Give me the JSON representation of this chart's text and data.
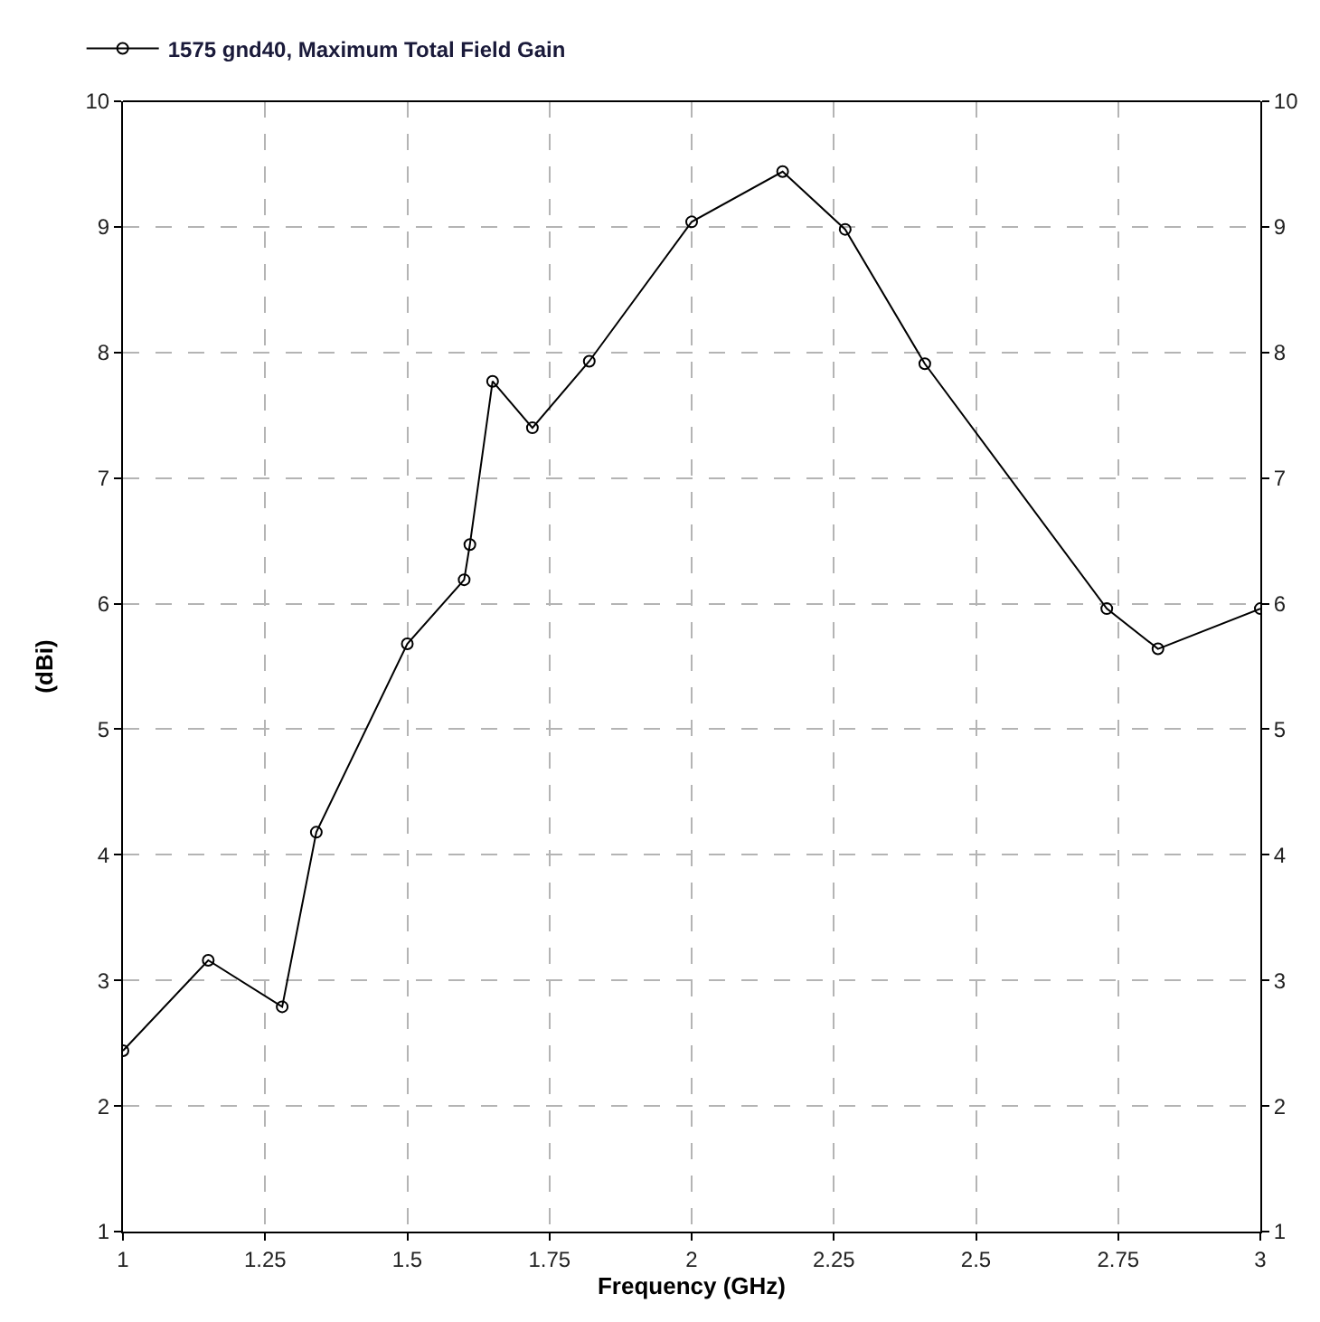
{
  "chart_data": {
    "type": "line",
    "xlabel": "Frequency (GHz)",
    "ylabel": "(dBi)",
    "x": [
      1.0,
      1.15,
      1.28,
      1.34,
      1.5,
      1.6,
      1.61,
      1.65,
      1.72,
      1.82,
      2.0,
      2.16,
      2.27,
      2.41,
      2.73,
      2.82,
      3.0
    ],
    "series": [
      {
        "name": "1575 gnd40, Maximum Total Field Gain",
        "color": "#000000",
        "values": [
          2.44,
          3.16,
          2.79,
          4.18,
          5.68,
          6.19,
          6.47,
          7.77,
          7.4,
          7.93,
          9.04,
          9.44,
          8.98,
          7.91,
          5.96,
          5.64,
          5.96
        ]
      }
    ],
    "xlim": [
      1,
      3
    ],
    "xticks": [
      1,
      1.25,
      1.5,
      1.75,
      2,
      2.25,
      2.5,
      2.75,
      3
    ],
    "ylim": [
      1,
      10
    ],
    "yticks": [
      1,
      2,
      3,
      4,
      5,
      6,
      7,
      8,
      9,
      10
    ],
    "y2lim": [
      1,
      10
    ],
    "y2ticks": [
      1,
      2,
      3,
      4,
      5,
      6,
      7,
      8,
      9,
      10
    ],
    "grid": true,
    "legend": "top left",
    "marker": "circle",
    "line_style": "solid"
  }
}
